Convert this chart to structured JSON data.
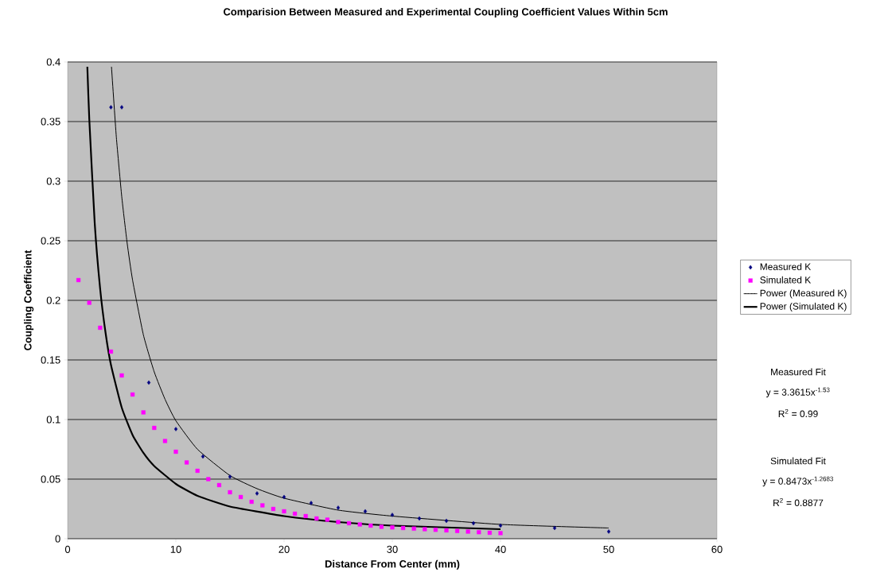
{
  "chart_data": {
    "type": "scatter",
    "title": "Comparision Between Measured and Experimental Coupling Coefficient Values Within 5cm",
    "xlabel": "Distance From Center (mm)",
    "ylabel": "Coupling Coefficient",
    "xlim": [
      0,
      60
    ],
    "ylim": [
      0,
      0.4
    ],
    "xticks": [
      0,
      10,
      20,
      30,
      40,
      50,
      60
    ],
    "yticks": [
      0,
      0.05,
      0.1,
      0.15,
      0.2,
      0.25,
      0.3,
      0.35,
      0.4
    ],
    "grid": "y",
    "legend": "right",
    "series": [
      {
        "name": "Measured K",
        "marker": "diamond",
        "color": "#000080",
        "x": [
          4,
          5,
          7.5,
          10,
          12.5,
          15,
          17.5,
          20,
          22.5,
          25,
          27.5,
          30,
          32.5,
          35,
          37.5,
          40,
          45,
          50
        ],
        "values": [
          0.362,
          0.362,
          0.131,
          0.092,
          0.069,
          0.052,
          0.038,
          0.035,
          0.03,
          0.026,
          0.023,
          0.02,
          0.017,
          0.015,
          0.013,
          0.011,
          0.009,
          0.006
        ]
      },
      {
        "name": "Simulated K",
        "marker": "square",
        "color": "#ff00ff",
        "x": [
          1,
          2,
          3,
          4,
          5,
          6,
          7,
          8,
          9,
          10,
          11,
          12,
          13,
          14,
          15,
          16,
          17,
          18,
          19,
          20,
          21,
          22,
          23,
          24,
          25,
          26,
          27,
          28,
          29,
          30,
          31,
          32,
          33,
          34,
          35,
          36,
          37,
          38,
          39,
          40
        ],
        "values": [
          0.217,
          0.198,
          0.177,
          0.157,
          0.137,
          0.121,
          0.106,
          0.093,
          0.082,
          0.073,
          0.064,
          0.057,
          0.05,
          0.045,
          0.039,
          0.035,
          0.031,
          0.028,
          0.025,
          0.023,
          0.021,
          0.019,
          0.017,
          0.016,
          0.014,
          0.013,
          0.012,
          0.011,
          0.01,
          0.0095,
          0.009,
          0.0085,
          0.008,
          0.0075,
          0.007,
          0.0065,
          0.006,
          0.0055,
          0.005,
          0.0047
        ]
      },
      {
        "name": "Power (Measured K)",
        "type": "line",
        "marker": "none",
        "color": "#000000",
        "x": [
          4.05,
          4.5,
          5,
          5.5,
          6,
          7,
          8,
          9,
          10,
          12,
          15,
          17.5,
          20,
          25,
          30,
          40,
          50
        ],
        "values": [
          0.396,
          0.337,
          0.287,
          0.248,
          0.217,
          0.171,
          0.14,
          0.117,
          0.099,
          0.075,
          0.053,
          0.042,
          0.034,
          0.024,
          0.019,
          0.012,
          0.009
        ]
      },
      {
        "name": "Power (Simulated K)",
        "type": "line",
        "marker": "none",
        "color": "#000000",
        "x": [
          1.82,
          2,
          2.5,
          3,
          3.5,
          4,
          5,
          6,
          7,
          8,
          10,
          12,
          15,
          20,
          25,
          30,
          40
        ],
        "values": [
          0.396,
          0.352,
          0.265,
          0.21,
          0.173,
          0.146,
          0.11,
          0.087,
          0.072,
          0.061,
          0.046,
          0.036,
          0.027,
          0.019,
          0.014,
          0.011,
          0.008
        ]
      }
    ],
    "annotations": [
      "Measured Fit",
      "y = 3.3615x$^{-1.53}$",
      "R$^{2}$ = 0.99",
      "Simulated Fit",
      "y = 0.8473x$^{-1.2683}$",
      "R$^{2}$ = 0.8877"
    ]
  }
}
